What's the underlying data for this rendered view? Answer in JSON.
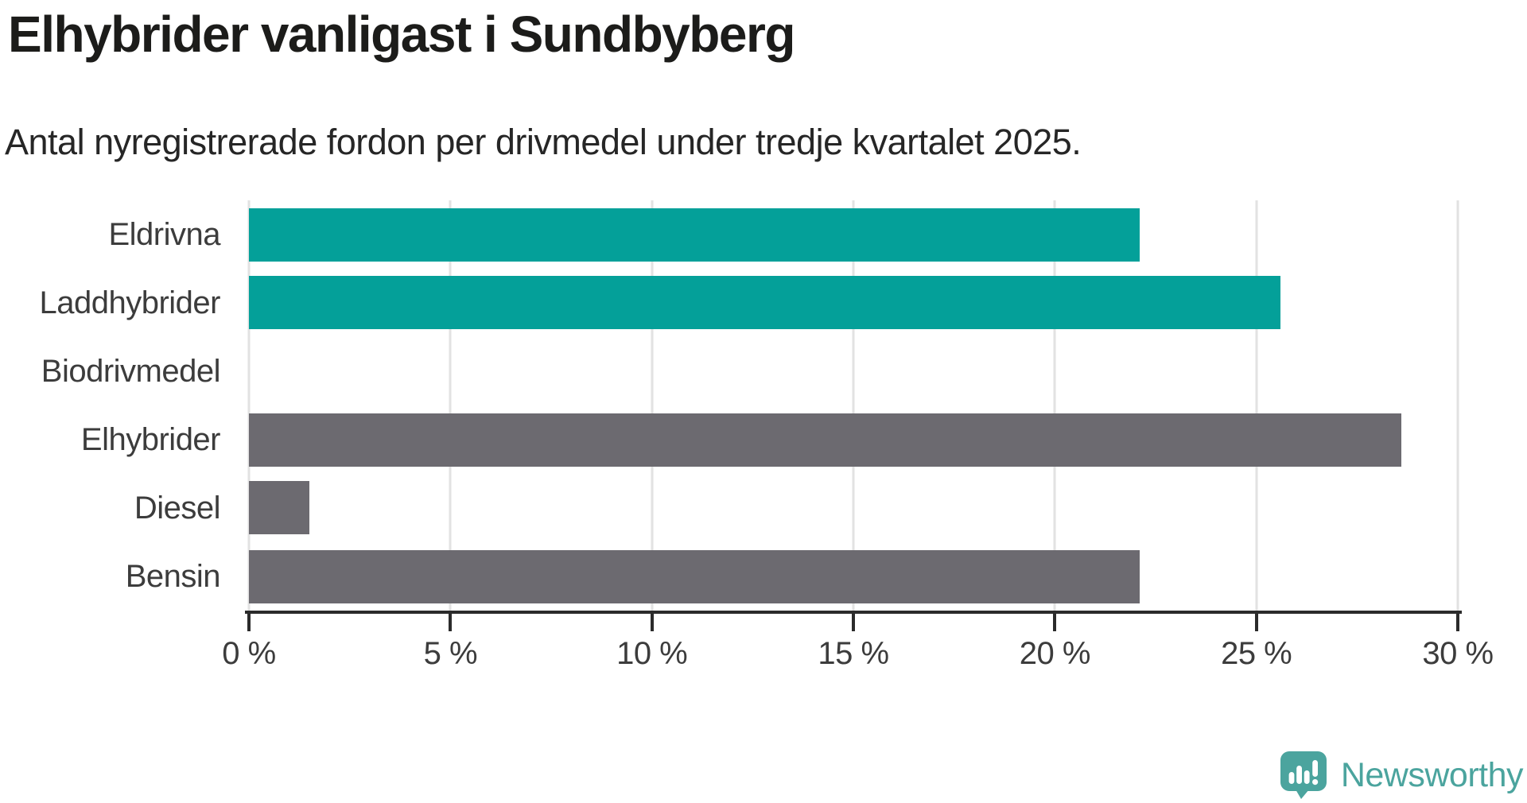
{
  "title": "Elhybrider vanligast i Sundbyberg",
  "subtitle": "Antal nyregistrerade fordon per drivmedel under tredje kvartalet 2025.",
  "branding": {
    "logo_text": "Newsworthy"
  },
  "colors": {
    "teal_bar": "#04a099",
    "gray_bar": "#6c6a70",
    "gridline": "#e2e2e2",
    "axis": "#2b2b2b",
    "label_text": "#3c3c3c",
    "title_text": "#1c1c1a",
    "logo_teal": "#4ba49e"
  },
  "chart_data": {
    "type": "bar",
    "orientation": "horizontal",
    "title": "Elhybrider vanligast i Sundbyberg",
    "subtitle": "Antal nyregistrerade fordon per drivmedel under tredje kvartalet 2025.",
    "categories": [
      "Eldrivna",
      "Laddhybrider",
      "Biodrivmedel",
      "Elhybrider",
      "Diesel",
      "Bensin"
    ],
    "values": [
      22.1,
      25.6,
      0,
      28.6,
      1.5,
      22.1
    ],
    "unit": "%",
    "bar_colors": [
      "#04a099",
      "#04a099",
      "#04a099",
      "#6c6a70",
      "#6c6a70",
      "#6c6a70"
    ],
    "xlim": [
      0,
      30
    ],
    "xticks": [
      0,
      5,
      10,
      15,
      20,
      25,
      30
    ],
    "xtick_labels": [
      "0 %",
      "5 %",
      "10 %",
      "15 %",
      "20 %",
      "25 %",
      "30 %"
    ],
    "xlabel": "",
    "ylabel": "",
    "grid": "vertical",
    "legend": "none"
  }
}
